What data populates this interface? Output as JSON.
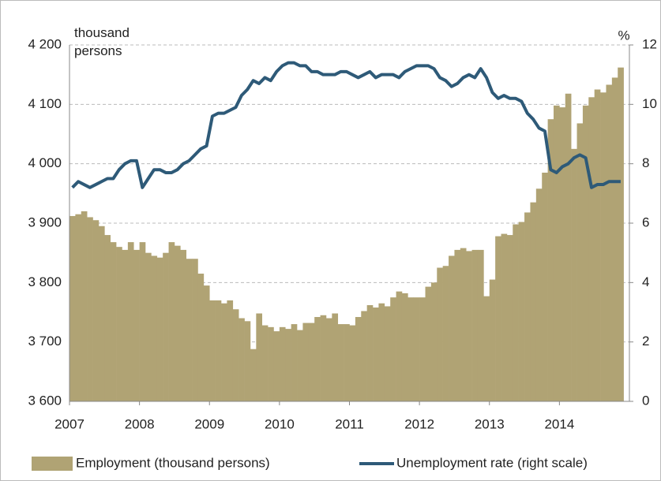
{
  "chart_data": {
    "type": "bar-line",
    "y_label": "thousand persons",
    "y2_label": "%",
    "categories": [
      "2007",
      null,
      null,
      null,
      null,
      null,
      null,
      null,
      null,
      null,
      null,
      null,
      "2008",
      null,
      null,
      null,
      null,
      null,
      null,
      null,
      null,
      null,
      null,
      null,
      "2009",
      null,
      null,
      null,
      null,
      null,
      null,
      null,
      null,
      null,
      null,
      null,
      "2010",
      null,
      null,
      null,
      null,
      null,
      null,
      null,
      null,
      null,
      null,
      null,
      "2011",
      null,
      null,
      null,
      null,
      null,
      null,
      null,
      null,
      null,
      null,
      null,
      "2012",
      null,
      null,
      null,
      null,
      null,
      null,
      null,
      null,
      null,
      null,
      null,
      "2013",
      null,
      null,
      null,
      null,
      null,
      null,
      null,
      null,
      null,
      null,
      null,
      "2014",
      null,
      null,
      null,
      null,
      null,
      null,
      null,
      null,
      null,
      null
    ],
    "series": [
      {
        "name": "Employment (thousand persons)",
        "type": "bar",
        "color": "#b0a374",
        "values": [
          3912,
          3915,
          3920,
          3910,
          3905,
          3895,
          3880,
          3868,
          3860,
          3855,
          3868,
          3855,
          3868,
          3850,
          3845,
          3842,
          3850,
          3868,
          3862,
          3855,
          3840,
          3840,
          3815,
          3795,
          3770,
          3770,
          3765,
          3770,
          3755,
          3740,
          3735,
          3688,
          3748,
          3728,
          3725,
          3718,
          3725,
          3722,
          3730,
          3720,
          3732,
          3732,
          3742,
          3745,
          3740,
          3748,
          3730,
          3730,
          3728,
          3742,
          3752,
          3762,
          3758,
          3765,
          3760,
          3775,
          3785,
          3782,
          3775,
          3775,
          3775,
          3793,
          3800,
          3825,
          3828,
          3845,
          3855,
          3858,
          3853,
          3855,
          3855,
          3777,
          3805,
          3878,
          3882,
          3880,
          3898,
          3902,
          3918,
          3935,
          3958,
          3985,
          4075,
          4098,
          4095,
          4118,
          4025,
          4068,
          4098,
          4112,
          4125,
          4120,
          4133,
          4145,
          4162
        ]
      },
      {
        "name": "Unemployment rate (right scale)",
        "type": "line",
        "axis": "y2",
        "color": "#2e5a78",
        "values": [
          7.2,
          7.4,
          7.3,
          7.2,
          7.3,
          7.4,
          7.5,
          7.5,
          7.8,
          8.0,
          8.1,
          8.1,
          7.2,
          7.5,
          7.8,
          7.8,
          7.7,
          7.7,
          7.8,
          8.0,
          8.1,
          8.3,
          8.5,
          8.6,
          9.6,
          9.7,
          9.7,
          9.8,
          9.9,
          10.3,
          10.5,
          10.8,
          10.7,
          10.9,
          10.8,
          11.1,
          11.3,
          11.4,
          11.4,
          11.3,
          11.3,
          11.1,
          11.1,
          11.0,
          11.0,
          11.0,
          11.1,
          11.1,
          11.0,
          10.9,
          11.0,
          11.1,
          10.9,
          11.0,
          11.0,
          11.0,
          10.9,
          11.1,
          11.2,
          11.3,
          11.3,
          11.3,
          11.2,
          10.9,
          10.8,
          10.6,
          10.7,
          10.9,
          11.0,
          10.9,
          11.2,
          10.9,
          10.4,
          10.2,
          10.3,
          10.2,
          10.2,
          10.1,
          9.7,
          9.5,
          9.2,
          9.1,
          7.8,
          7.7,
          7.9,
          8.0,
          8.2,
          8.3,
          8.2,
          7.2,
          7.3,
          7.3,
          7.4,
          7.4,
          7.4
        ]
      }
    ],
    "ylim": [
      3600,
      4200
    ],
    "yticks": [
      {
        "value": 3600,
        "label": "3 600"
      },
      {
        "value": 3700,
        "label": "3 700"
      },
      {
        "value": 3800,
        "label": "3 800"
      },
      {
        "value": 3900,
        "label": "3 900"
      },
      {
        "value": 4000,
        "label": "4 000"
      },
      {
        "value": 4100,
        "label": "4 100"
      },
      {
        "value": 4200,
        "label": "4 200"
      }
    ],
    "y2lim": [
      0,
      12
    ],
    "y2ticks": [
      0,
      2,
      4,
      6,
      8,
      10,
      12
    ],
    "grid": true,
    "legend": "bottom"
  }
}
